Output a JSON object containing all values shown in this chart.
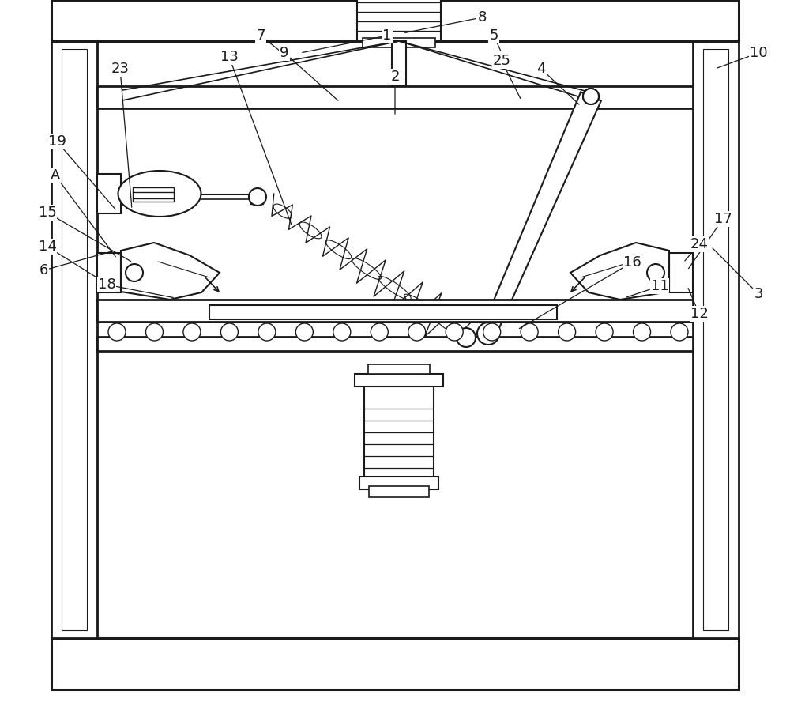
{
  "bg": "#ffffff",
  "lc": "#1a1a1a",
  "fw": 10.0,
  "fh": 9.07,
  "labels": [
    [
      "1",
      490,
      862,
      380,
      840
    ],
    [
      "2",
      500,
      810,
      500,
      760
    ],
    [
      "3",
      960,
      535,
      900,
      595
    ],
    [
      "4",
      685,
      820,
      735,
      773
    ],
    [
      "5",
      625,
      862,
      635,
      840
    ],
    [
      "6",
      55,
      565,
      145,
      590
    ],
    [
      "7",
      330,
      862,
      370,
      830
    ],
    [
      "8",
      610,
      885,
      510,
      865
    ],
    [
      "9",
      360,
      840,
      430,
      778
    ],
    [
      "10",
      960,
      840,
      905,
      820
    ],
    [
      "11",
      835,
      545,
      790,
      530
    ],
    [
      "12",
      885,
      510,
      870,
      545
    ],
    [
      "13",
      290,
      835,
      370,
      620
    ],
    [
      "14",
      60,
      595,
      148,
      540
    ],
    [
      "15",
      60,
      638,
      168,
      575
    ],
    [
      "19",
      72,
      728,
      148,
      640
    ],
    [
      "18",
      135,
      547,
      222,
      530
    ],
    [
      "23",
      152,
      820,
      167,
      642
    ],
    [
      "A",
      70,
      685,
      148,
      580
    ],
    [
      "16",
      800,
      575,
      655,
      490
    ],
    [
      "17",
      915,
      630,
      870,
      565
    ],
    [
      "24",
      885,
      598,
      865,
      575
    ],
    [
      "25",
      635,
      830,
      660,
      780
    ]
  ]
}
